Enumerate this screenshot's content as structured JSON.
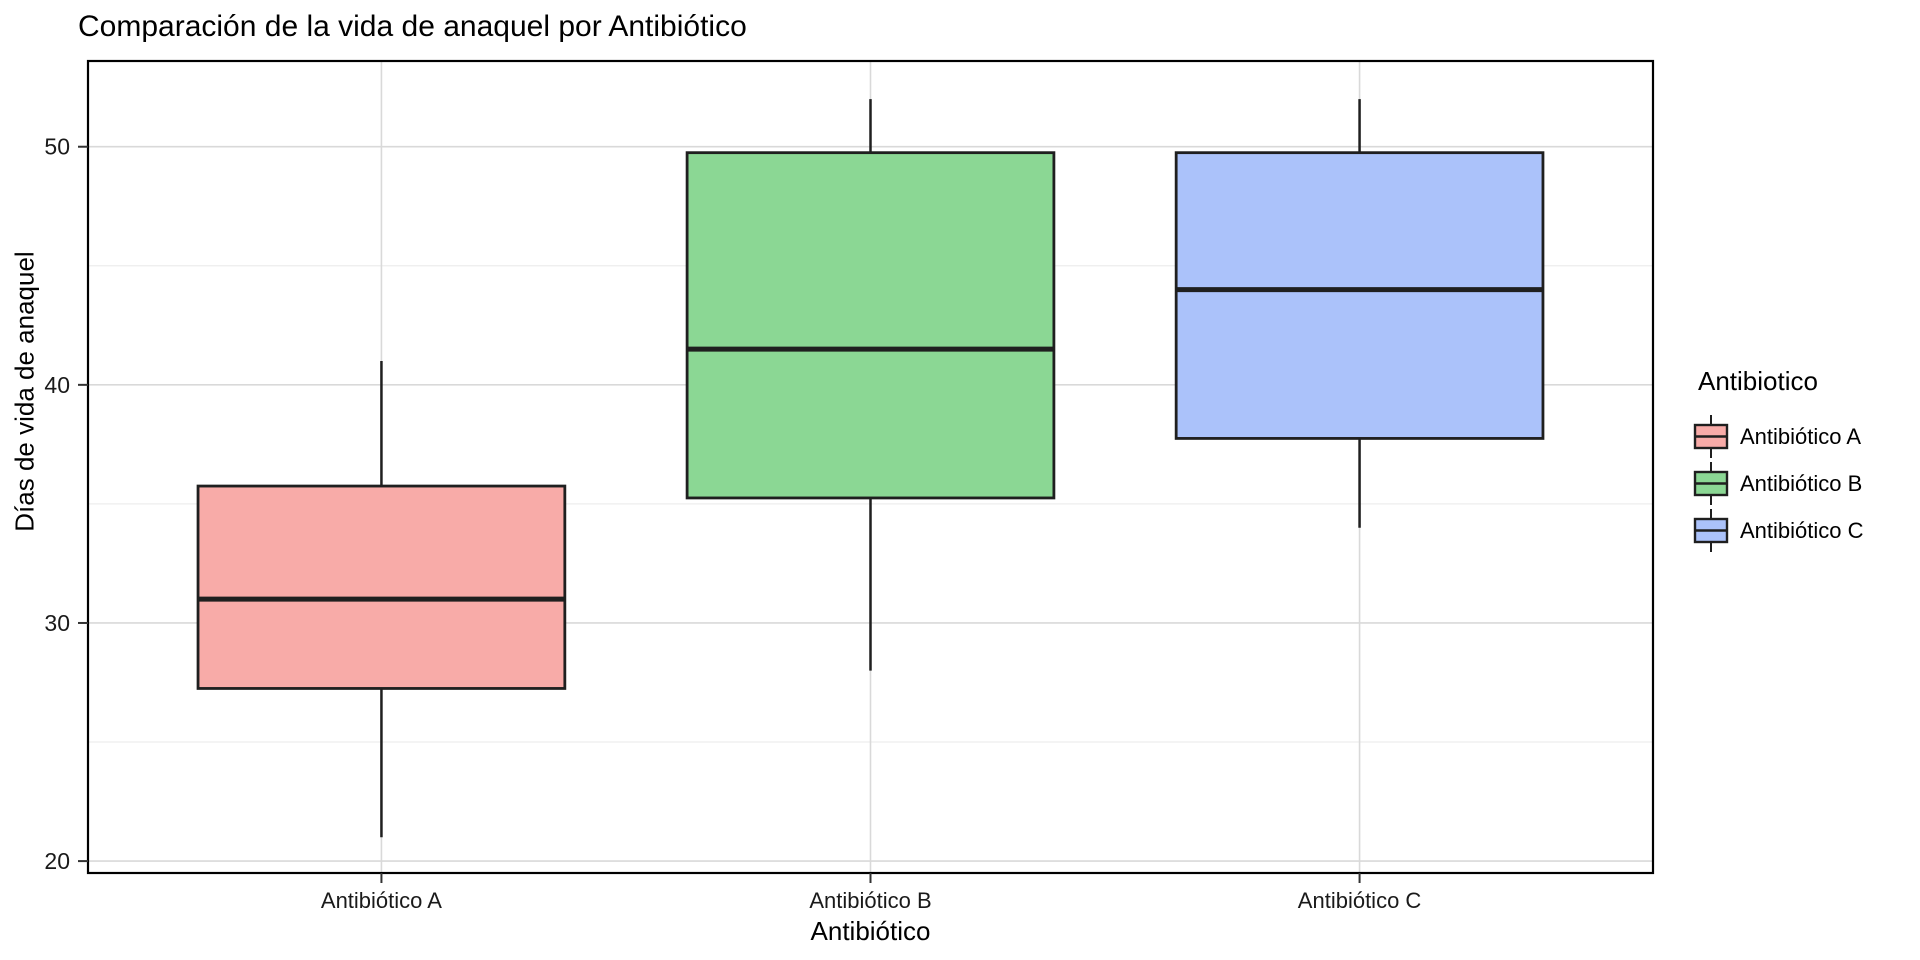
{
  "chart_data": {
    "type": "boxplot",
    "title": "Comparación de la vida de anaquel por Antibiótico",
    "xlabel": "Antibiótico",
    "ylabel": "Días de vida de anaquel",
    "categories": [
      "Antibiótico A",
      "Antibiótico B",
      "Antibiótico C"
    ],
    "series": [
      {
        "name": "Antibiótico A",
        "min": 21,
        "q1": 27.25,
        "median": 31,
        "q3": 35.75,
        "max": 41,
        "fill": "#F8ABA8"
      },
      {
        "name": "Antibiótico B",
        "min": 28,
        "q1": 35.25,
        "median": 41.5,
        "q3": 49.75,
        "max": 52,
        "fill": "#8BD794"
      },
      {
        "name": "Antibiótico C",
        "min": 34,
        "q1": 37.75,
        "median": 44,
        "q3": 49.75,
        "max": 52,
        "fill": "#ABC2FA"
      }
    ],
    "ylim": [
      19.5,
      53.6
    ],
    "yticks": [
      20,
      30,
      40,
      50
    ],
    "yminor": [
      25,
      35,
      45
    ],
    "grid": "horizontal major+minor, vertical major at categories",
    "legend_position": "right",
    "box_width_fraction": 0.75
  },
  "legend": {
    "title": "Antibiotico",
    "items": [
      "Antibiótico A",
      "Antibiótico B",
      "Antibiótico C"
    ]
  },
  "colors": {
    "box_stroke": "#1f1f1f",
    "median": "#1f1f1f",
    "grid_major": "#d9d9d9",
    "grid_minor": "#ededed",
    "panel_border": "#000000",
    "tick": "#333333",
    "tick_label": "#1a1a1a",
    "fills": [
      "#F8ABA8",
      "#8BD794",
      "#ABC2FA"
    ]
  }
}
